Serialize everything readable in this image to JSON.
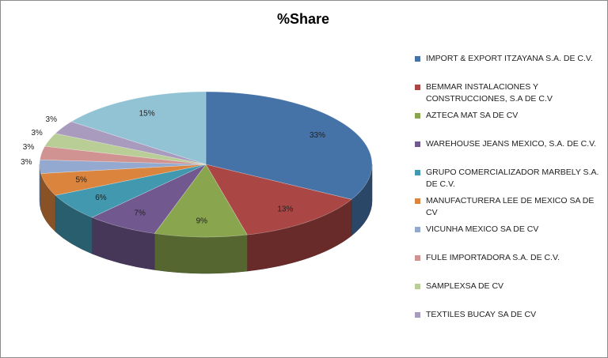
{
  "chart_data": {
    "type": "pie",
    "title": "%Share",
    "categories": [
      "IMPORT & EXPORT ITZAYANA S.A. DE C.V.",
      "BEMMAR INSTALACIONES Y CONSTRUCCIONES,  S.A DE C.V",
      "AZTECA MAT SA DE CV",
      "WAREHOUSE JEANS MEXICO, S.A. DE C.V.",
      "GRUPO COMERCIALIZADOR MARBELY S.A. DE C.V.",
      "MANUFACTURERA  LEE DE MEXICO  SA DE CV",
      "VICUNHA MEXICO SA DE CV",
      "FULE IMPORTADORA S.A. DE C.V.",
      "SAMPLEXSA DE CV",
      "TEXTILES BUCAY SA DE CV",
      null
    ],
    "values": [
      33,
      13,
      9,
      7,
      6,
      5,
      3,
      3,
      3,
      3,
      15
    ],
    "value_labels": [
      "33%",
      "13%",
      "9%",
      "7%",
      "6%",
      "5%",
      "3%",
      "3%",
      "3%",
      "3%",
      "15%"
    ],
    "colors": [
      "#4572a7",
      "#aa4643",
      "#89a54e",
      "#71588f",
      "#4198af",
      "#db843d",
      "#93a9cf",
      "#d19392",
      "#b9cd96",
      "#a99bbd",
      "#92c3d4"
    ],
    "legend": "right"
  }
}
